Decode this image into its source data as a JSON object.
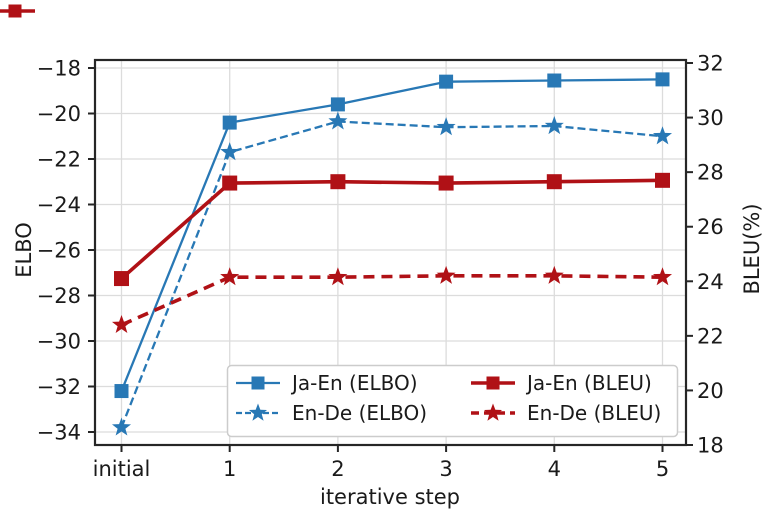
{
  "decorations": {
    "top_left_fragment": {
      "color": "#b01116",
      "shape": "cropped line with square marker"
    }
  },
  "chart_data": {
    "type": "line",
    "title": "",
    "xlabel": "iterative step",
    "categories": [
      "initial",
      "1",
      "2",
      "3",
      "4",
      "5"
    ],
    "axes": {
      "left": {
        "label": "ELBO",
        "tick_values": [
          -18,
          -20,
          -22,
          -24,
          -26,
          -28,
          -30,
          -32,
          -34
        ],
        "tick_labels": [
          "−18",
          "−20",
          "−22",
          "−24",
          "−26",
          "−28",
          "−30",
          "−32",
          "−34"
        ],
        "range": [
          -34.6,
          -17.8
        ],
        "grid": true
      },
      "right": {
        "label": "BLEU(%)",
        "tick_values": [
          32,
          30,
          28,
          26,
          24,
          22,
          20,
          18
        ],
        "tick_labels": [
          "32",
          "30",
          "28",
          "26",
          "24",
          "22",
          "20",
          "18"
        ],
        "range": [
          18,
          32.1
        ],
        "grid": false
      }
    },
    "series": [
      {
        "name": "Ja-En (ELBO)",
        "axis": "left",
        "color": "#2878b5",
        "line": "solid",
        "marker": "square",
        "values": [
          -32.2,
          -20.4,
          -19.6,
          -18.6,
          -18.55,
          -18.5
        ]
      },
      {
        "name": "En-De (ELBO)",
        "axis": "left",
        "color": "#2878b5",
        "line": "dashed",
        "marker": "star",
        "values": [
          -33.8,
          -21.7,
          -20.35,
          -20.6,
          -20.55,
          -21.0
        ]
      },
      {
        "name": "Ja-En (BLEU)",
        "axis": "right",
        "color": "#b01116",
        "line": "solid",
        "marker": "square",
        "values": [
          24.1,
          27.6,
          27.65,
          27.6,
          27.65,
          27.7
        ]
      },
      {
        "name": "En-De (BLEU)",
        "axis": "right",
        "color": "#b01116",
        "line": "dashed",
        "marker": "star",
        "values": [
          22.4,
          24.15,
          24.15,
          24.2,
          24.2,
          24.15
        ]
      }
    ],
    "legend": {
      "position": "lower-center-right",
      "columns": 2,
      "entries": [
        "Ja-En (ELBO)",
        "En-De (ELBO)",
        "Ja-En (BLEU)",
        "En-De (BLEU)"
      ]
    },
    "colors": {
      "blue": "#2878b5",
      "red": "#b01116",
      "grid": "#dcdcdc",
      "spine": "#262626",
      "text": "#1a1a1a",
      "legend_border": "#cccccc",
      "background": "#ffffff"
    }
  }
}
